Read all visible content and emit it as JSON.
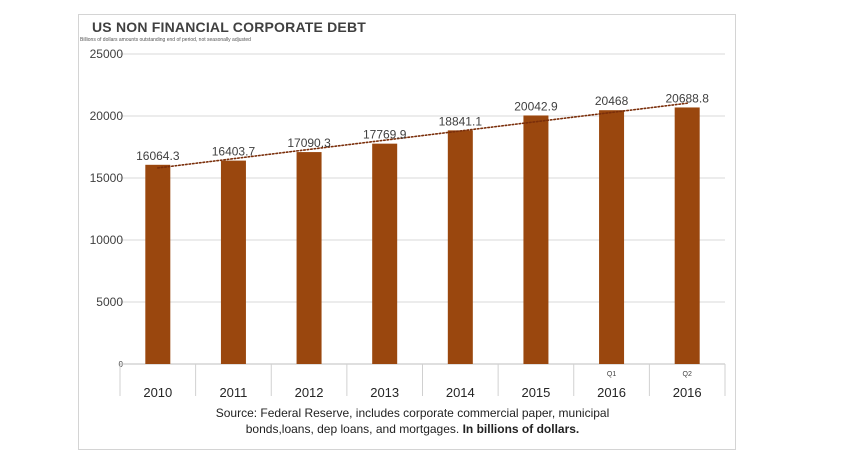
{
  "chart_data": {
    "type": "bar",
    "title": "US NON FINANCIAL CORPORATE DEBT",
    "subtitle": "Billions of dollars amounts outstanding end of period, not seasonally adjusted",
    "categories": [
      "2010",
      "2011",
      "2012",
      "2013",
      "2014",
      "2015",
      "2016",
      "2016"
    ],
    "category_sublabels": [
      "",
      "",
      "",
      "",
      "",
      "",
      "Q1",
      "Q2"
    ],
    "values": [
      16064.3,
      16403.7,
      17090.3,
      17769.9,
      18841.1,
      20042.9,
      20468,
      20688.8
    ],
    "data_labels": [
      "16064.3",
      "16403.7",
      "17090.3",
      "17769.9",
      "18841.1",
      "20042.9",
      "20468",
      "20688.8"
    ],
    "y_ticks": [
      "0",
      "5000",
      "10000",
      "15000",
      "20000",
      "25000"
    ],
    "ylim": [
      0,
      25000
    ],
    "grid": true,
    "trendline": "linear dotted",
    "bar_color": "#9a470e",
    "trend_color": "#7a2e0a",
    "xlabel": "",
    "ylabel": ""
  },
  "source": {
    "text": "Source:  Federal Reserve, includes corporate commercial paper, municipal bonds,loans, dep loans, and mortgages.",
    "bold": "In billions of dollars."
  }
}
